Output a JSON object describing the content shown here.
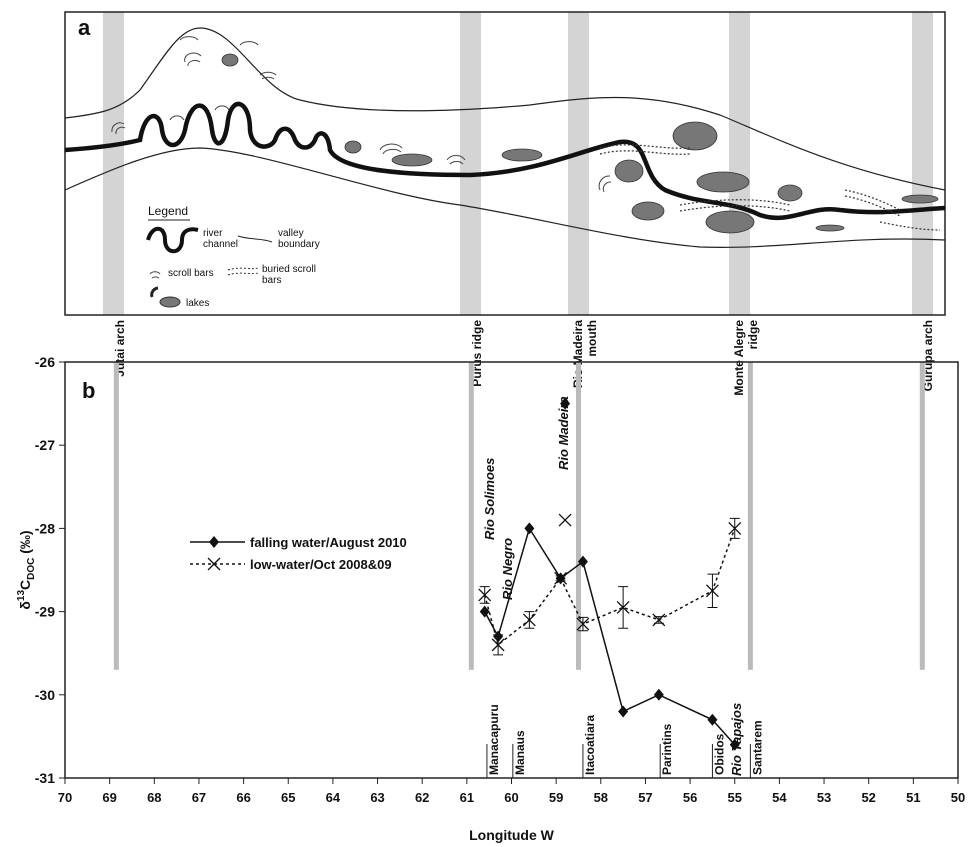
{
  "diagram": {
    "panel_label": "a",
    "places": [
      "Jutai arch",
      "Purus ridge",
      "Rio Madeira mouth",
      "Monte Alegre ridge",
      "Gurupa arch"
    ],
    "legend": {
      "title": "Legend",
      "river": "river channel",
      "valley": "valley boundary",
      "scroll": "scroll bars",
      "buried": "buried scroll bars",
      "lakes": "lakes"
    }
  },
  "chart_data": {
    "type": "line",
    "panel_label": "b",
    "xlabel": "Longitude W",
    "ylabel": [
      "δ",
      "13",
      "C",
      "DOC",
      " (‰)"
    ],
    "xlim": [
      70,
      50
    ],
    "ylim": [
      -31,
      -26
    ],
    "xticks": [
      70,
      69,
      68,
      67,
      66,
      65,
      64,
      63,
      62,
      61,
      60,
      59,
      58,
      57,
      56,
      55,
      54,
      53,
      52,
      51,
      50
    ],
    "yticks": [
      -31,
      -30,
      -29,
      -28,
      -27,
      -26
    ],
    "series": [
      {
        "name": "falling water/August 2010",
        "color": "#111111",
        "marker": "diamond",
        "linestyle": "solid",
        "x": [
          60.6,
          60.3,
          59.6,
          58.9,
          58.4,
          57.5,
          56.7,
          55.5,
          55.0
        ],
        "values": [
          -29.0,
          -29.3,
          -28.0,
          -28.6,
          -28.4,
          -30.2,
          -30.0,
          -30.3,
          -30.6
        ]
      },
      {
        "name": "low-water/Oct 2008&09",
        "color": "#111111",
        "marker": "x",
        "linestyle": "dotted",
        "x": [
          60.6,
          60.3,
          59.6,
          58.9,
          58.4,
          57.5,
          56.7,
          55.5,
          55.0
        ],
        "values": [
          -28.8,
          -29.4,
          -29.1,
          -28.6,
          -29.15,
          -28.95,
          -29.1,
          -28.75,
          -28.0
        ],
        "errors": [
          0.1,
          0.12,
          0.1,
          0.03,
          0.08,
          0.25,
          0.04,
          0.2,
          0.12
        ]
      },
      {
        "color": "#111111",
        "marker": "diamond",
        "linestyle": "none",
        "x": [
          58.8
        ],
        "values": [
          -26.5
        ]
      },
      {
        "color": "#111111",
        "marker": "x",
        "linestyle": "none",
        "x": [
          58.8
        ],
        "values": [
          -27.9
        ]
      }
    ],
    "bands": {
      "x": [
        68.85,
        60.9,
        58.5,
        54.65,
        50.8
      ],
      "top": -26,
      "bottom": -29.7,
      "color": "#bbbbbb"
    },
    "annotations": [
      "Rio Solimoes",
      "Rio Negro",
      "Rio Madeira",
      "Rio Tapajos"
    ],
    "stations": [
      {
        "name": "Manacapuru",
        "x": 60.55
      },
      {
        "name": "Manaus",
        "x": 59.97
      },
      {
        "name": "Itacoatiara",
        "x": 58.4
      },
      {
        "name": "Parintins",
        "x": 56.67
      },
      {
        "name": "Obidos",
        "x": 55.5
      },
      {
        "name": "Santarem",
        "x": 54.65
      }
    ],
    "legend": "upper-left"
  }
}
